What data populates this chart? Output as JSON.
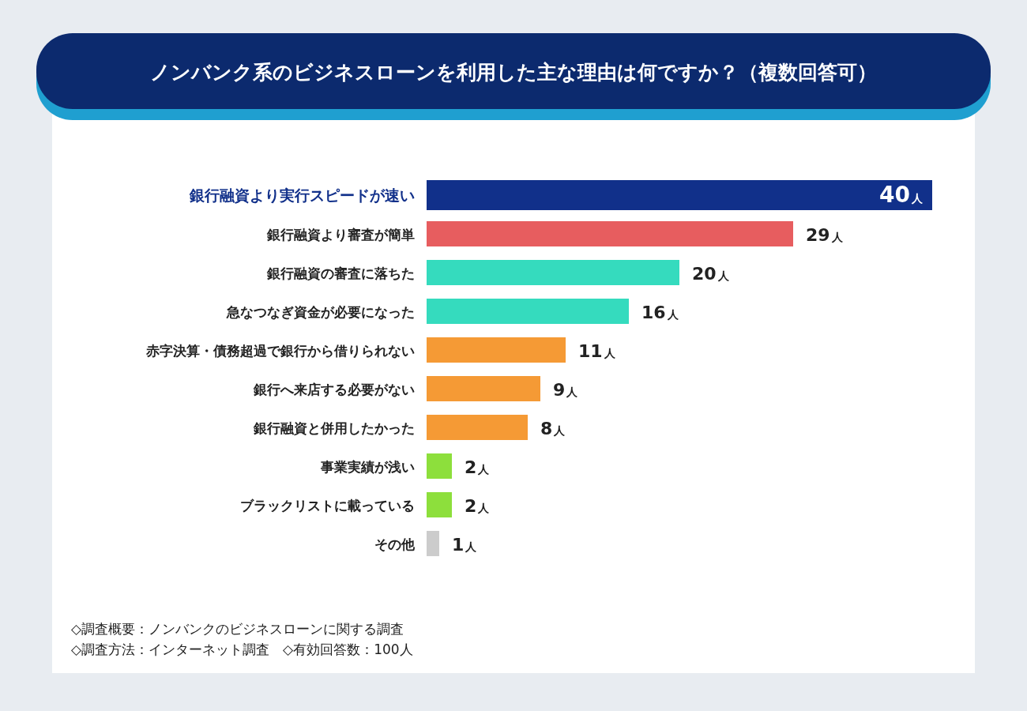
{
  "chart_data": {
    "type": "bar",
    "orientation": "horizontal",
    "title": "ノンバンク系のビジネスローンを利用した主な理由は何ですか？（複数回答可）",
    "categories": [
      "銀行融資より実行スピードが速い",
      "銀行融資より審査が簡単",
      "銀行融資の審査に落ちた",
      "急なつなぎ資金が必要になった",
      "赤字決算・債務超過で銀行から借りられない",
      "銀行へ来店する必要がない",
      "銀行融資と併用したかった",
      "事業実績が浅い",
      "ブラックリストに載っている",
      "その他"
    ],
    "values": [
      40,
      29,
      20,
      16,
      11,
      9,
      8,
      2,
      2,
      1
    ],
    "colors": [
      "#11308a",
      "#e75d5f",
      "#35dbbe",
      "#35dbbe",
      "#f59a35",
      "#f59a35",
      "#f59a35",
      "#8ddf3c",
      "#8ddf3c",
      "#cccccc"
    ],
    "value_labels": [
      "40人",
      "29人",
      "20人",
      "16人",
      "11人",
      "9人",
      "8人",
      "2人",
      "2人",
      "1人"
    ],
    "annotations": [
      "◇調査概要：ノンバンクのビジネスローンに関する調査",
      "◇調査方法：インターネット調査　◇有効回答数：100人"
    ]
  }
}
